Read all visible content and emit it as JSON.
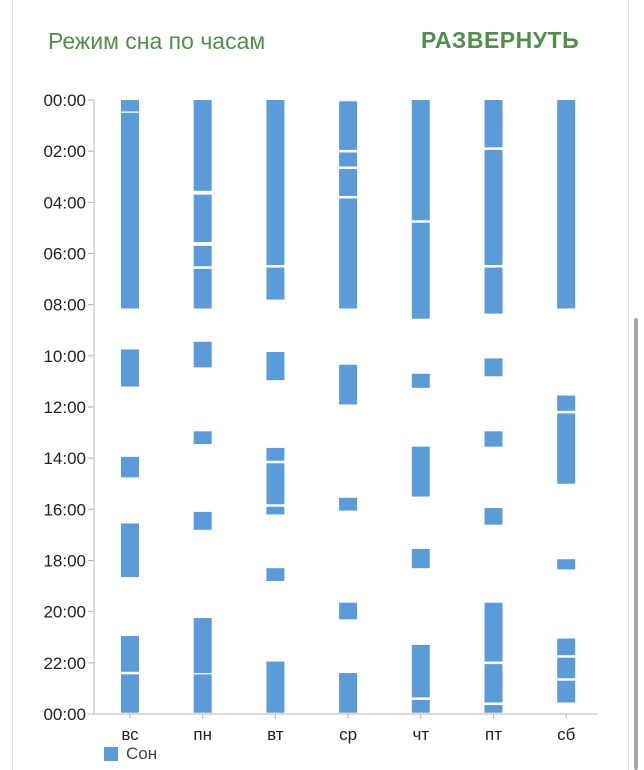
{
  "header": {
    "title": "Режим сна по часам",
    "expand_label": "РАЗВЕРНУТЬ"
  },
  "colors": {
    "accent": "#4f8f4a",
    "bar": "#5b9bd8"
  },
  "chart_data": {
    "type": "bar",
    "subtype": "floating-range",
    "title": "Режим сна по часам",
    "xlabel": "",
    "ylabel": "",
    "y_unit": "hours",
    "ylim": [
      0,
      24
    ],
    "y_reversed": true,
    "grid": false,
    "legend_position": "bottom-left",
    "y_tick_labels": [
      "00:00",
      "02:00",
      "04:00",
      "06:00",
      "08:00",
      "10:00",
      "12:00",
      "14:00",
      "16:00",
      "18:00",
      "20:00",
      "22:00",
      "00:00"
    ],
    "categories": [
      "вс",
      "пн",
      "вт",
      "ср",
      "чт",
      "пт",
      "сб"
    ],
    "series": [
      {
        "name": "Сон",
        "color": "#5b9bd8",
        "ranges": [
          [
            [
              0,
              0.45
            ],
            [
              0.5,
              8.15
            ],
            [
              9.75,
              11.2
            ],
            [
              13.95,
              14.75
            ],
            [
              16.55,
              18.65
            ],
            [
              20.95,
              22.35
            ],
            [
              22.45,
              23.95
            ]
          ],
          [
            [
              0,
              3.55
            ],
            [
              3.7,
              5.55
            ],
            [
              5.7,
              6.5
            ],
            [
              6.6,
              8.15
            ],
            [
              9.45,
              10.45
            ],
            [
              12.95,
              13.45
            ],
            [
              16.1,
              16.8
            ],
            [
              20.25,
              22.4
            ],
            [
              22.45,
              23.95
            ]
          ],
          [
            [
              0,
              6.45
            ],
            [
              6.55,
              7.8
            ],
            [
              9.85,
              10.95
            ],
            [
              13.6,
              14.1
            ],
            [
              14.2,
              15.8
            ],
            [
              15.9,
              16.2
            ],
            [
              18.3,
              18.8
            ],
            [
              21.95,
              23.95
            ]
          ],
          [
            [
              0.05,
              1.95
            ],
            [
              2.05,
              2.6
            ],
            [
              2.7,
              3.75
            ],
            [
              3.85,
              8.15
            ],
            [
              10.35,
              11.9
            ],
            [
              15.55,
              16.05
            ],
            [
              19.65,
              20.3
            ],
            [
              22.4,
              23.95
            ]
          ],
          [
            [
              0,
              4.7
            ],
            [
              4.8,
              8.55
            ],
            [
              10.7,
              11.25
            ],
            [
              13.55,
              15.5
            ],
            [
              17.55,
              18.3
            ],
            [
              21.3,
              23.35
            ],
            [
              23.45,
              23.95
            ]
          ],
          [
            [
              0,
              1.85
            ],
            [
              1.95,
              6.45
            ],
            [
              6.55,
              8.35
            ],
            [
              10.1,
              10.8
            ],
            [
              12.95,
              13.55
            ],
            [
              15.95,
              16.6
            ],
            [
              19.65,
              21.95
            ],
            [
              22.05,
              23.55
            ],
            [
              23.65,
              23.95
            ]
          ],
          [
            [
              0,
              8.15
            ],
            [
              11.55,
              12.15
            ],
            [
              12.25,
              15.0
            ],
            [
              17.95,
              18.35
            ],
            [
              21.05,
              21.7
            ],
            [
              21.8,
              22.6
            ],
            [
              22.7,
              23.55
            ]
          ]
        ]
      }
    ]
  }
}
